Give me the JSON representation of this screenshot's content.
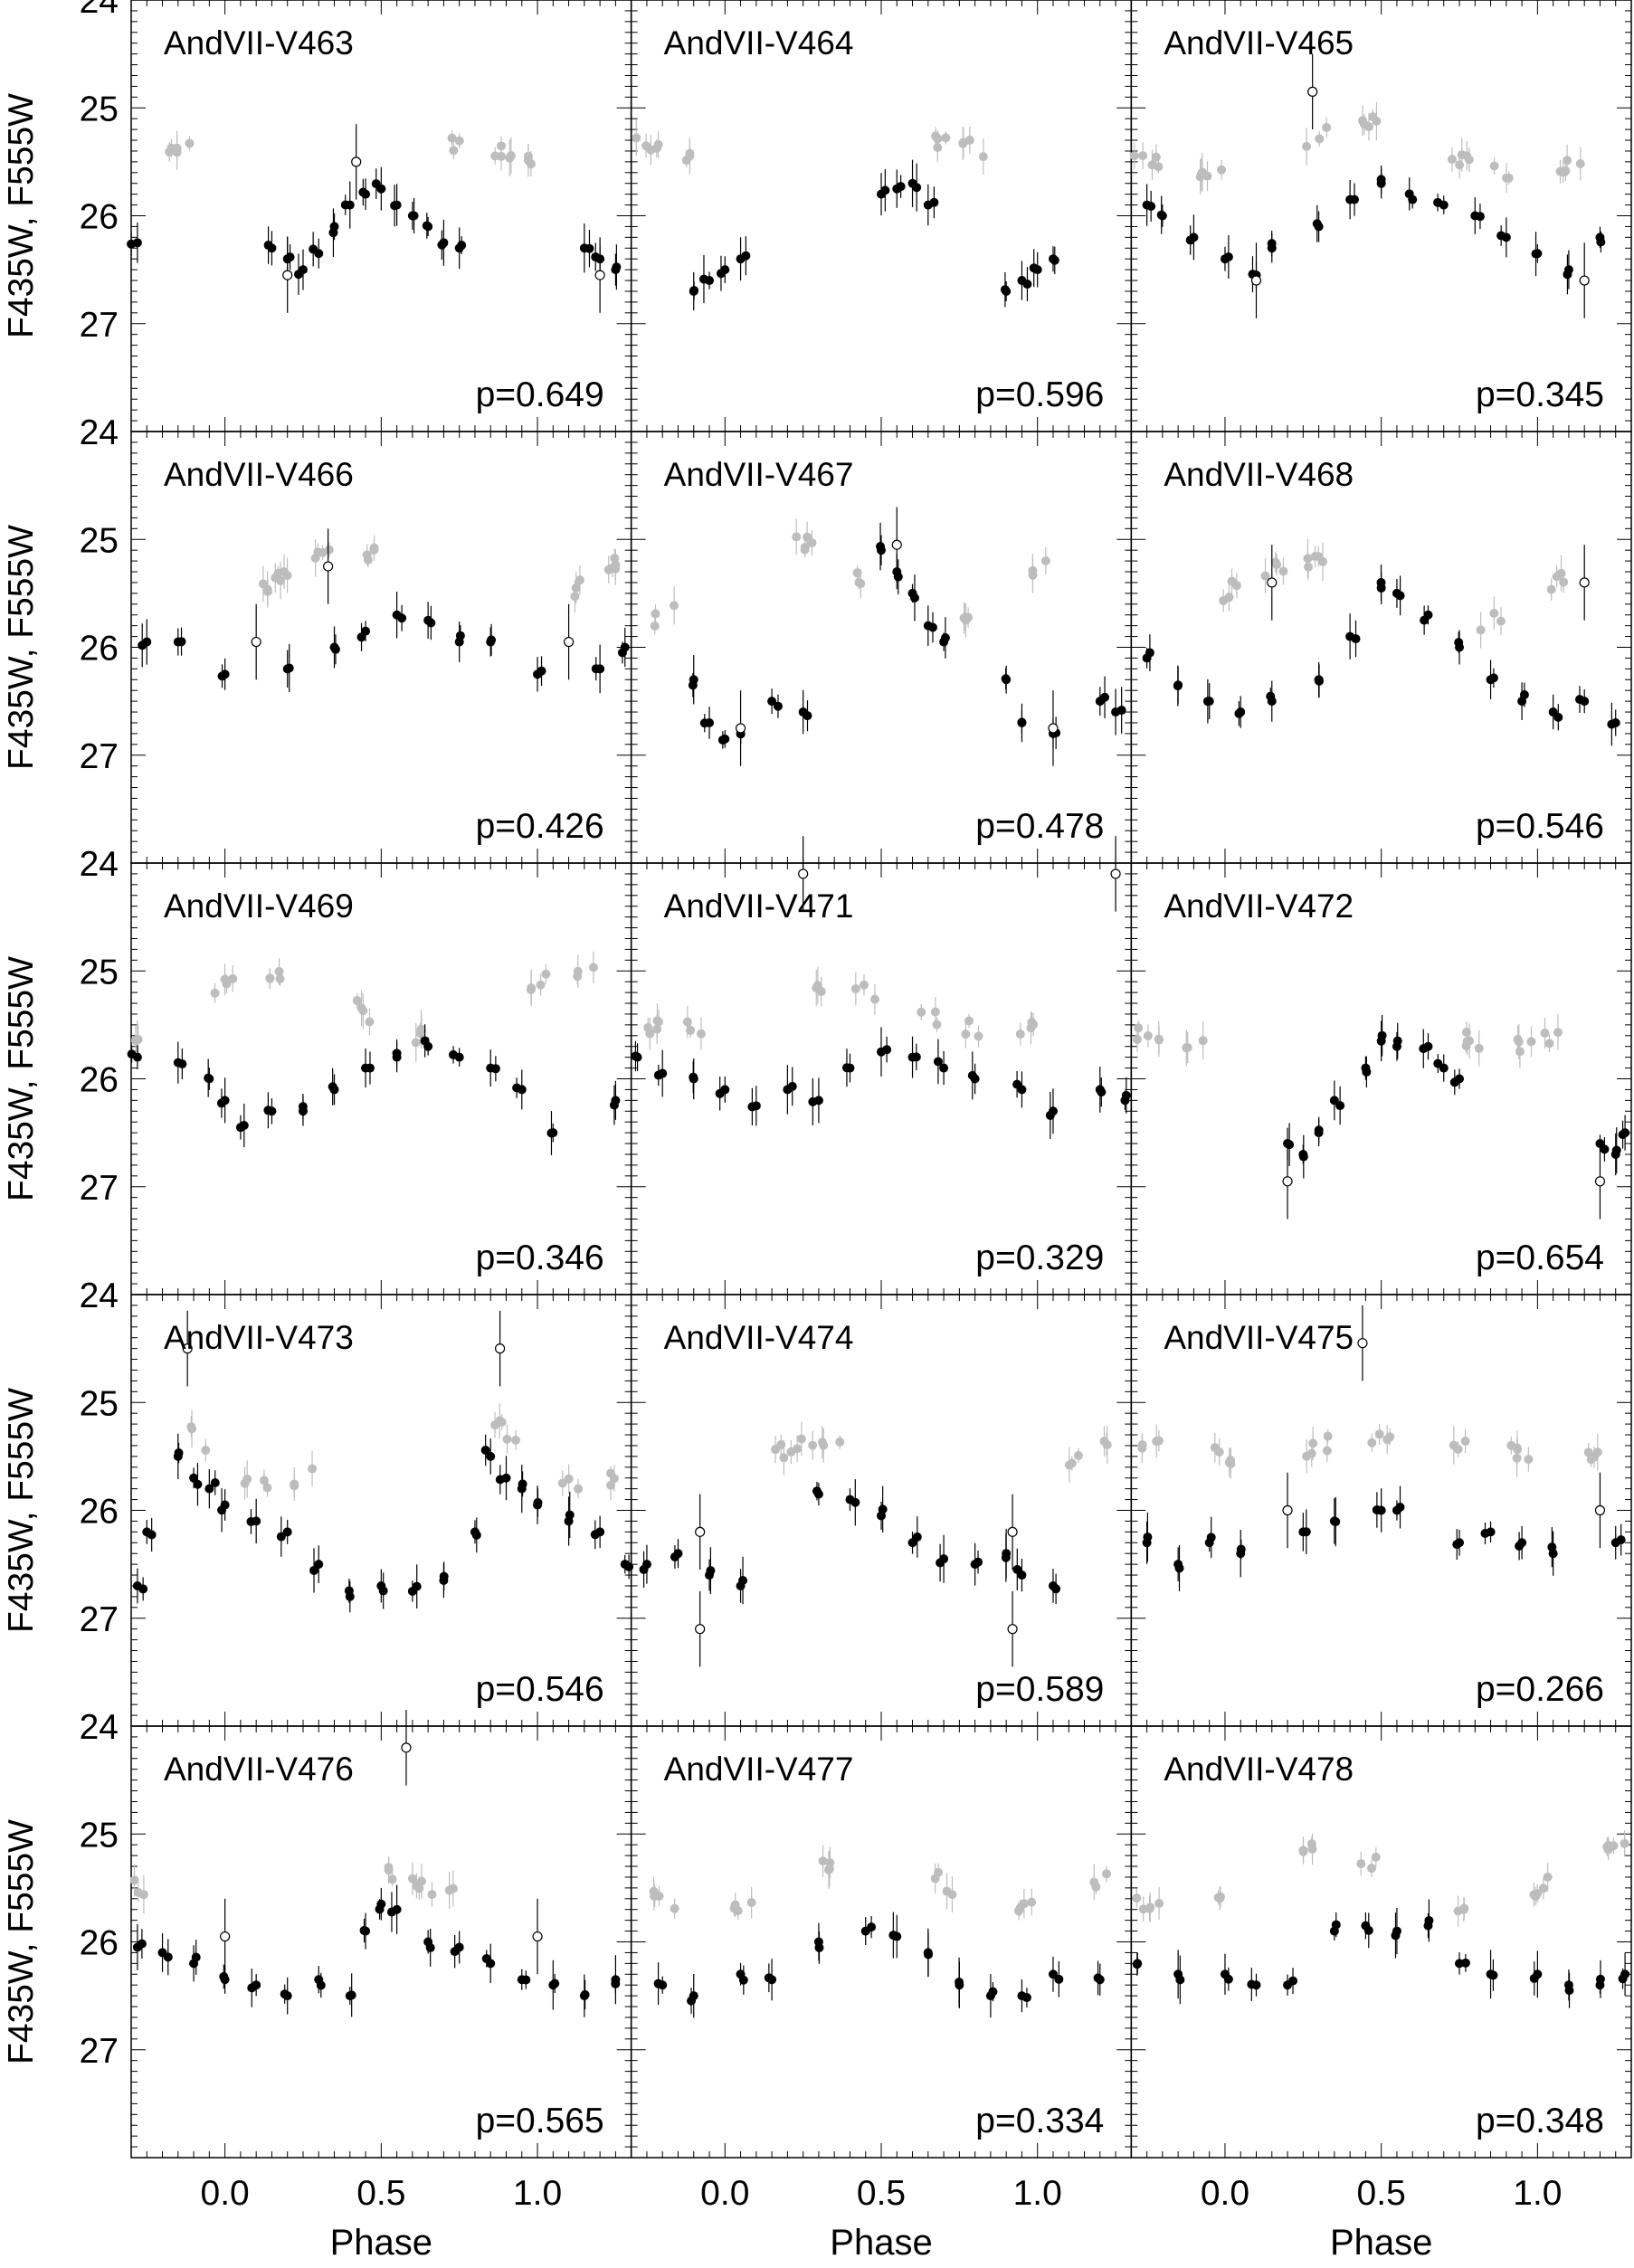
{
  "figure": {
    "x_label": "Phase",
    "y_label": "F435W, F555W",
    "x_ticks": [
      "0.0",
      "0.5",
      "1.0"
    ],
    "y_ticks": [
      "24",
      "25",
      "26",
      "27"
    ],
    "xlim": [
      -0.3,
      1.3
    ],
    "ylim": [
      28.0,
      24.0
    ],
    "colors": {
      "b_band": "#bdbdbd",
      "v_band": "#000000",
      "frame": "#000000"
    }
  },
  "chart_data": [
    {
      "type": "scatter",
      "title": "AndVII-V463",
      "period_label": "p=0.649",
      "b_base": 25.5,
      "b_amp": 0.15,
      "b_offset": 0.0,
      "b_nights": [
        -0.15,
        0.75,
        0.9,
        1.0
      ],
      "v_points": [
        [
          0.15,
          26.3
        ],
        [
          0.2,
          26.4
        ],
        [
          0.25,
          26.5
        ],
        [
          0.3,
          26.35
        ],
        [
          0.35,
          26.1
        ],
        [
          0.4,
          25.9
        ],
        [
          0.45,
          25.8
        ],
        [
          0.5,
          25.75
        ],
        [
          0.55,
          25.9
        ],
        [
          0.6,
          26.0
        ],
        [
          0.65,
          26.1
        ],
        [
          0.7,
          26.25
        ],
        [
          0.75,
          26.3
        ],
        [
          -0.28,
          26.25
        ],
        [
          1.15,
          26.3
        ],
        [
          1.2,
          26.4
        ],
        [
          1.25,
          26.5
        ]
      ],
      "open_points": [
        [
          0.42,
          25.5
        ],
        [
          0.2,
          26.55
        ],
        [
          1.2,
          26.55
        ]
      ]
    },
    {
      "type": "scatter",
      "title": "AndVII-V464",
      "period_label": "p=0.596",
      "b_base": 25.5,
      "b_amp": 0.2,
      "b_offset": 0.1,
      "b_nights": [
        -0.25,
        -0.1,
        0.7,
        0.8
      ],
      "v_points": [
        [
          -0.1,
          26.7
        ],
        [
          -0.05,
          26.6
        ],
        [
          0.0,
          26.5
        ],
        [
          0.05,
          26.4
        ],
        [
          0.5,
          25.8
        ],
        [
          0.55,
          25.75
        ],
        [
          0.6,
          25.7
        ],
        [
          0.65,
          25.9
        ],
        [
          0.9,
          26.7
        ],
        [
          0.95,
          26.6
        ],
        [
          1.0,
          26.5
        ],
        [
          1.05,
          26.4
        ]
      ],
      "open_points": []
    },
    {
      "type": "scatter",
      "title": "AndVII-V465",
      "period_label": "p=0.345",
      "b_base": 25.4,
      "b_amp": 0.25,
      "b_offset": 0.3,
      "b_nights": [
        -0.25,
        -0.05,
        0.3,
        0.45,
        0.75,
        0.9,
        1.1
      ],
      "v_points": [
        [
          -0.25,
          25.9
        ],
        [
          -0.2,
          26.0
        ],
        [
          -0.1,
          26.2
        ],
        [
          0.0,
          26.4
        ],
        [
          0.1,
          26.55
        ],
        [
          0.15,
          26.3
        ],
        [
          0.3,
          26.1
        ],
        [
          0.4,
          25.85
        ],
        [
          0.5,
          25.7
        ],
        [
          0.6,
          25.85
        ],
        [
          0.7,
          25.9
        ],
        [
          0.8,
          26.0
        ],
        [
          0.9,
          26.2
        ],
        [
          1.0,
          26.35
        ],
        [
          1.1,
          26.5
        ],
        [
          1.2,
          26.2
        ]
      ],
      "open_points": [
        [
          0.28,
          24.85
        ],
        [
          0.1,
          26.6
        ],
        [
          1.15,
          26.6
        ]
      ]
    },
    {
      "type": "scatter",
      "title": "AndVII-V466",
      "period_label": "p=0.426",
      "b_base": 25.4,
      "b_amp": 0.3,
      "b_offset": 0.35,
      "b_nights": [
        0.1,
        0.2,
        0.3,
        0.45,
        1.1,
        1.25
      ],
      "v_points": [
        [
          -0.25,
          25.95
        ],
        [
          -0.15,
          25.95
        ],
        [
          0.0,
          26.25
        ],
        [
          0.2,
          26.2
        ],
        [
          0.35,
          26.0
        ],
        [
          0.45,
          25.85
        ],
        [
          0.55,
          25.7
        ],
        [
          0.65,
          25.75
        ],
        [
          0.75,
          25.95
        ],
        [
          0.85,
          25.95
        ],
        [
          1.0,
          26.25
        ],
        [
          1.2,
          26.2
        ],
        [
          1.28,
          26.0
        ]
      ],
      "open_points": [
        [
          0.33,
          25.25
        ],
        [
          0.1,
          25.95
        ],
        [
          1.1,
          25.95
        ]
      ]
    },
    {
      "type": "scatter",
      "title": "AndVII-V467",
      "period_label": "p=0.478",
      "b_base": 25.4,
      "b_amp": 0.4,
      "b_offset": 0.55,
      "b_nights": [
        -0.2,
        0.25,
        0.4,
        0.75,
        1.0
      ],
      "v_points": [
        [
          -0.1,
          26.3
        ],
        [
          -0.05,
          26.7
        ],
        [
          0.0,
          26.85
        ],
        [
          0.05,
          26.8
        ],
        [
          0.15,
          26.5
        ],
        [
          0.25,
          26.6
        ],
        [
          0.5,
          25.1
        ],
        [
          0.55,
          25.3
        ],
        [
          0.6,
          25.5
        ],
        [
          0.65,
          25.8
        ],
        [
          0.7,
          25.95
        ],
        [
          0.9,
          26.3
        ],
        [
          0.95,
          26.7
        ],
        [
          1.05,
          26.8
        ],
        [
          1.2,
          26.5
        ],
        [
          1.25,
          26.6
        ]
      ],
      "open_points": [
        [
          0.55,
          25.05
        ],
        [
          0.05,
          26.75
        ],
        [
          1.05,
          26.75
        ]
      ]
    },
    {
      "type": "scatter",
      "title": "AndVII-V468",
      "period_label": "p=0.546",
      "b_base": 25.5,
      "b_amp": 0.3,
      "b_offset": 0.5,
      "b_nights": [
        0.0,
        0.15,
        0.3,
        0.85,
        1.05
      ],
      "v_points": [
        [
          -0.25,
          26.1
        ],
        [
          -0.15,
          26.35
        ],
        [
          -0.05,
          26.5
        ],
        [
          0.05,
          26.6
        ],
        [
          0.15,
          26.5
        ],
        [
          0.3,
          26.3
        ],
        [
          0.4,
          25.9
        ],
        [
          0.5,
          25.45
        ],
        [
          0.55,
          25.5
        ],
        [
          0.65,
          25.7
        ],
        [
          0.75,
          26.0
        ],
        [
          0.85,
          26.3
        ],
        [
          0.95,
          26.5
        ],
        [
          1.05,
          26.6
        ],
        [
          1.15,
          26.5
        ],
        [
          1.25,
          26.7
        ]
      ],
      "open_points": [
        [
          0.15,
          25.4
        ],
        [
          1.15,
          25.4
        ]
      ]
    },
    {
      "type": "scatter",
      "title": "AndVII-V469",
      "period_label": "p=0.346",
      "b_base": 25.3,
      "b_amp": 0.3,
      "b_offset": 0.6,
      "b_nights": [
        -0.3,
        0.0,
        0.15,
        0.45,
        0.65,
        1.0,
        1.15
      ],
      "v_points": [
        [
          -0.28,
          25.8
        ],
        [
          -0.15,
          25.85
        ],
        [
          -0.05,
          26.0
        ],
        [
          0.0,
          26.2
        ],
        [
          0.05,
          26.45
        ],
        [
          0.15,
          26.3
        ],
        [
          0.25,
          26.3
        ],
        [
          0.35,
          26.1
        ],
        [
          0.45,
          25.9
        ],
        [
          0.55,
          25.8
        ],
        [
          0.65,
          25.7
        ],
        [
          0.75,
          25.8
        ],
        [
          0.85,
          25.9
        ],
        [
          0.95,
          26.1
        ],
        [
          1.05,
          26.5
        ],
        [
          1.25,
          26.2
        ]
      ],
      "open_points": []
    },
    {
      "type": "scatter",
      "title": "AndVII-V471",
      "period_label": "p=0.329",
      "b_base": 25.35,
      "b_amp": 0.2,
      "b_offset": 0.4,
      "b_nights": [
        -0.25,
        -0.1,
        0.3,
        0.45,
        0.65,
        0.8,
        0.95
      ],
      "v_points": [
        [
          -0.28,
          25.8
        ],
        [
          -0.2,
          25.95
        ],
        [
          -0.1,
          26.0
        ],
        [
          0.0,
          26.1
        ],
        [
          0.1,
          26.25
        ],
        [
          0.2,
          26.1
        ],
        [
          0.3,
          26.2
        ],
        [
          0.4,
          25.9
        ],
        [
          0.5,
          25.75
        ],
        [
          0.6,
          25.8
        ],
        [
          0.7,
          25.9
        ],
        [
          0.8,
          26.0
        ],
        [
          0.95,
          26.1
        ],
        [
          1.05,
          26.3
        ],
        [
          1.2,
          26.1
        ],
        [
          1.28,
          26.2
        ]
      ],
      "open_points": [
        [
          0.25,
          24.1
        ],
        [
          1.25,
          24.1
        ]
      ]
    },
    {
      "type": "scatter",
      "title": "AndVII-V472",
      "period_label": "p=0.654",
      "b_base": 25.5,
      "b_amp": 0.2,
      "b_offset": 0.35,
      "b_nights": [
        -0.25,
        -0.1,
        0.8,
        0.95,
        1.05
      ],
      "v_points": [
        [
          0.2,
          26.6
        ],
        [
          0.25,
          26.7
        ],
        [
          0.3,
          26.5
        ],
        [
          0.35,
          26.2
        ],
        [
          0.45,
          25.9
        ],
        [
          0.5,
          25.65
        ],
        [
          0.55,
          25.7
        ],
        [
          0.65,
          25.7
        ],
        [
          0.7,
          25.9
        ],
        [
          0.75,
          26.0
        ],
        [
          1.2,
          26.6
        ],
        [
          1.25,
          26.7
        ],
        [
          1.28,
          26.5
        ]
      ],
      "open_points": [
        [
          0.2,
          26.95
        ],
        [
          1.2,
          26.95
        ]
      ]
    },
    {
      "type": "scatter",
      "title": "AndVII-V473",
      "period_label": "p=0.546",
      "b_base": 25.3,
      "b_amp": 0.5,
      "b_offset": 0.1,
      "b_nights": [
        -0.1,
        0.1,
        0.25,
        0.9,
        1.1,
        1.25
      ],
      "v_points": [
        [
          -0.28,
          26.7
        ],
        [
          -0.25,
          26.2
        ],
        [
          -0.15,
          25.5
        ],
        [
          -0.1,
          25.7
        ],
        [
          -0.05,
          25.8
        ],
        [
          0.0,
          25.95
        ],
        [
          0.1,
          26.1
        ],
        [
          0.2,
          26.2
        ],
        [
          0.3,
          26.5
        ],
        [
          0.4,
          26.8
        ],
        [
          0.5,
          26.7
        ],
        [
          0.6,
          26.75
        ],
        [
          0.7,
          26.65
        ],
        [
          0.8,
          26.2
        ],
        [
          0.85,
          25.5
        ],
        [
          0.9,
          25.7
        ],
        [
          0.95,
          25.8
        ],
        [
          1.0,
          25.95
        ],
        [
          1.1,
          26.1
        ],
        [
          1.2,
          26.2
        ],
        [
          1.28,
          26.5
        ]
      ],
      "open_points": [
        [
          -0.12,
          24.5
        ],
        [
          0.88,
          24.5
        ]
      ]
    },
    {
      "type": "scatter",
      "title": "AndVII-V474",
      "period_label": "p=0.589",
      "b_base": 25.55,
      "b_amp": 0.2,
      "b_offset": 0.4,
      "b_nights": [
        0.15,
        0.25,
        0.35,
        1.1,
        1.25
      ],
      "v_points": [
        [
          -0.25,
          26.5
        ],
        [
          -0.15,
          26.4
        ],
        [
          -0.05,
          26.6
        ],
        [
          0.05,
          26.7
        ],
        [
          0.3,
          25.85
        ],
        [
          0.4,
          25.9
        ],
        [
          0.5,
          26.05
        ],
        [
          0.6,
          26.3
        ],
        [
          0.7,
          26.45
        ],
        [
          0.8,
          26.5
        ],
        [
          0.9,
          26.4
        ],
        [
          0.95,
          26.6
        ],
        [
          1.05,
          26.7
        ]
      ],
      "open_points": [
        [
          -0.08,
          26.2
        ],
        [
          -0.08,
          27.1
        ],
        [
          0.92,
          26.2
        ],
        [
          0.92,
          27.1
        ]
      ]
    },
    {
      "type": "scatter",
      "title": "AndVII-V475",
      "period_label": "p=0.266",
      "b_base": 25.4,
      "b_amp": 0.1,
      "b_offset": 0.2,
      "b_nights": [
        -0.25,
        0.0,
        0.3,
        0.5,
        0.75,
        0.95,
        1.2
      ],
      "v_points": [
        [
          -0.25,
          26.3
        ],
        [
          -0.15,
          26.5
        ],
        [
          -0.05,
          26.3
        ],
        [
          0.05,
          26.4
        ],
        [
          0.25,
          26.2
        ],
        [
          0.35,
          26.1
        ],
        [
          0.5,
          26.0
        ],
        [
          0.55,
          26.0
        ],
        [
          0.75,
          26.3
        ],
        [
          0.85,
          26.2
        ],
        [
          0.95,
          26.3
        ],
        [
          1.05,
          26.4
        ],
        [
          1.25,
          26.3
        ]
      ],
      "open_points": [
        [
          0.44,
          24.45
        ],
        [
          0.2,
          26.0
        ],
        [
          1.2,
          26.0
        ]
      ]
    },
    {
      "type": "scatter",
      "title": "AndVII-V476",
      "period_label": "p=0.565",
      "b_base": 25.2,
      "b_amp": 0.3,
      "b_offset": 0.55,
      "b_nights": [
        -0.28,
        0.5,
        0.6,
        0.7
      ],
      "v_points": [
        [
          -0.28,
          26.05
        ],
        [
          -0.2,
          26.1
        ],
        [
          -0.1,
          26.2
        ],
        [
          0.0,
          26.35
        ],
        [
          0.1,
          26.4
        ],
        [
          0.2,
          26.5
        ],
        [
          0.3,
          26.35
        ],
        [
          0.4,
          26.5
        ],
        [
          0.45,
          25.9
        ],
        [
          0.5,
          25.65
        ],
        [
          0.55,
          25.7
        ],
        [
          0.65,
          26.0
        ],
        [
          0.75,
          26.05
        ],
        [
          0.85,
          26.2
        ],
        [
          0.95,
          26.35
        ],
        [
          1.05,
          26.4
        ],
        [
          1.15,
          26.5
        ],
        [
          1.25,
          26.35
        ]
      ],
      "open_points": [
        [
          0.0,
          25.95
        ],
        [
          0.58,
          24.2
        ],
        [
          1.0,
          25.95
        ]
      ]
    },
    {
      "type": "scatter",
      "title": "AndVII-V477",
      "period_label": "p=0.334",
      "b_base": 25.45,
      "b_amp": 0.25,
      "b_offset": 0.3,
      "b_nights": [
        -0.2,
        0.05,
        0.3,
        0.7,
        0.95,
        1.2
      ],
      "v_points": [
        [
          -0.2,
          26.4
        ],
        [
          -0.1,
          26.5
        ],
        [
          0.05,
          26.3
        ],
        [
          0.15,
          26.35
        ],
        [
          0.3,
          26.0
        ],
        [
          0.45,
          25.9
        ],
        [
          0.55,
          25.95
        ],
        [
          0.65,
          26.1
        ],
        [
          0.75,
          26.4
        ],
        [
          0.85,
          26.5
        ],
        [
          0.95,
          26.5
        ],
        [
          1.05,
          26.3
        ],
        [
          1.2,
          26.35
        ]
      ],
      "open_points": []
    },
    {
      "type": "scatter",
      "title": "AndVII-V478",
      "period_label": "p=0.348",
      "b_base": 25.4,
      "b_amp": 0.3,
      "b_offset": 0.45,
      "b_nights": [
        -0.25,
        0.0,
        0.25,
        0.45,
        0.75,
        1.0,
        1.25
      ],
      "v_points": [
        [
          -0.28,
          26.2
        ],
        [
          -0.15,
          26.3
        ],
        [
          0.0,
          26.3
        ],
        [
          0.1,
          26.4
        ],
        [
          0.2,
          26.4
        ],
        [
          0.35,
          25.9
        ],
        [
          0.45,
          25.85
        ],
        [
          0.55,
          25.9
        ],
        [
          0.65,
          25.85
        ],
        [
          0.75,
          26.2
        ],
        [
          0.85,
          26.3
        ],
        [
          1.0,
          26.3
        ],
        [
          1.1,
          26.4
        ],
        [
          1.2,
          26.4
        ],
        [
          1.28,
          26.3
        ]
      ],
      "open_points": []
    }
  ]
}
